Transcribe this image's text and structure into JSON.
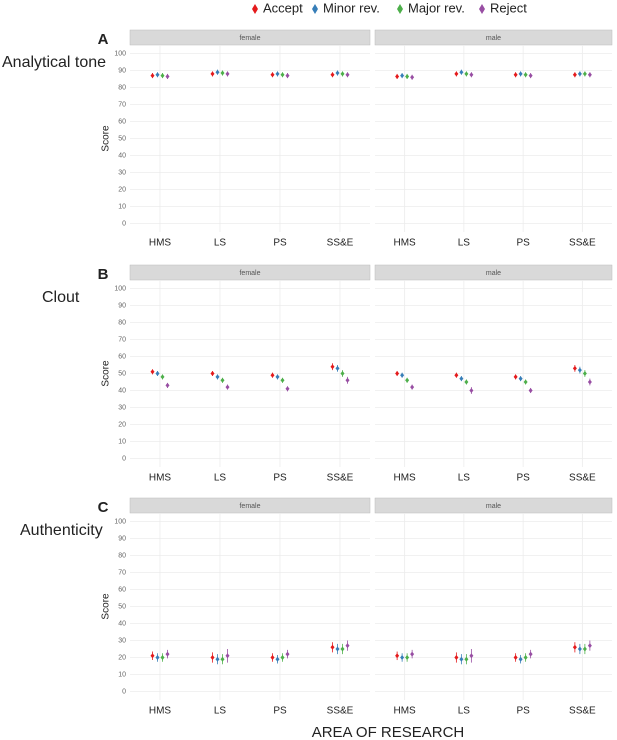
{
  "chart_data": [
    {
      "type": "dodged-point-errorbar",
      "letter": "A",
      "title": "Analytical tone",
      "ylabel": "Score",
      "ylim": [
        -5,
        105
      ],
      "yticks": [
        0,
        10,
        20,
        30,
        40,
        50,
        60,
        70,
        80,
        90,
        100
      ],
      "grid": true,
      "categories": [
        "HMS",
        "LS",
        "PS",
        "SS&E"
      ],
      "facets": [
        {
          "label": "female",
          "series": [
            {
              "name": "Accept",
              "color": "#e41a1c",
              "values": [
                87,
                88,
                87.5,
                87.5
              ],
              "errors": [
                1.5,
                1.5,
                1.5,
                1.5
              ]
            },
            {
              "name": "Minor rev.",
              "color": "#377eb8",
              "values": [
                87.5,
                89,
                88,
                88.5
              ],
              "errors": [
                1.5,
                1.5,
                1.5,
                1.5
              ]
            },
            {
              "name": "Major rev.",
              "color": "#4daf4a",
              "values": [
                87,
                88.5,
                87.5,
                88
              ],
              "errors": [
                1.5,
                1.5,
                1.5,
                1.5
              ]
            },
            {
              "name": "Reject",
              "color": "#984ea3",
              "values": [
                86.5,
                88,
                87,
                87.5
              ],
              "errors": [
                1.5,
                1.5,
                1.5,
                1.5
              ]
            }
          ]
        },
        {
          "label": "male",
          "series": [
            {
              "name": "Accept",
              "color": "#e41a1c",
              "values": [
                86.5,
                88,
                87.5,
                87.5
              ],
              "errors": [
                1.5,
                1.5,
                1.5,
                1.5
              ]
            },
            {
              "name": "Minor rev.",
              "color": "#377eb8",
              "values": [
                87,
                89,
                88,
                88
              ],
              "errors": [
                1.5,
                1.5,
                1.5,
                1.5
              ]
            },
            {
              "name": "Major rev.",
              "color": "#4daf4a",
              "values": [
                86.5,
                88,
                87.5,
                88
              ],
              "errors": [
                1.5,
                1.5,
                1.5,
                1.5
              ]
            },
            {
              "name": "Reject",
              "color": "#984ea3",
              "values": [
                86,
                87.5,
                87,
                87.5
              ],
              "errors": [
                1.5,
                1.5,
                1.5,
                1.5
              ]
            }
          ]
        }
      ]
    },
    {
      "type": "dodged-point-errorbar",
      "letter": "B",
      "title": "Clout",
      "ylabel": "Score",
      "ylim": [
        -5,
        105
      ],
      "yticks": [
        0,
        10,
        20,
        30,
        40,
        50,
        60,
        70,
        80,
        90,
        100
      ],
      "grid": true,
      "categories": [
        "HMS",
        "LS",
        "PS",
        "SS&E"
      ],
      "facets": [
        {
          "label": "female",
          "series": [
            {
              "name": "Accept",
              "color": "#e41a1c",
              "values": [
                51,
                50,
                49,
                54
              ],
              "errors": [
                1.5,
                1.5,
                1.5,
                2
              ]
            },
            {
              "name": "Minor rev.",
              "color": "#377eb8",
              "values": [
                50,
                48,
                48,
                53
              ],
              "errors": [
                1.5,
                1.5,
                1.5,
                2
              ]
            },
            {
              "name": "Major rev.",
              "color": "#4daf4a",
              "values": [
                48,
                46,
                46,
                50
              ],
              "errors": [
                1.5,
                1.5,
                1.5,
                2
              ]
            },
            {
              "name": "Reject",
              "color": "#984ea3",
              "values": [
                43,
                42,
                41,
                46
              ],
              "errors": [
                1.5,
                1.5,
                1.5,
                2
              ]
            }
          ]
        },
        {
          "label": "male",
          "series": [
            {
              "name": "Accept",
              "color": "#e41a1c",
              "values": [
                50,
                49,
                48,
                53
              ],
              "errors": [
                1.5,
                1.5,
                1.5,
                2
              ]
            },
            {
              "name": "Minor rev.",
              "color": "#377eb8",
              "values": [
                49,
                47,
                47,
                52
              ],
              "errors": [
                1.5,
                1.5,
                1.5,
                2
              ]
            },
            {
              "name": "Major rev.",
              "color": "#4daf4a",
              "values": [
                46,
                45,
                45,
                50
              ],
              "errors": [
                1.5,
                1.5,
                1.5,
                2
              ]
            },
            {
              "name": "Reject",
              "color": "#984ea3",
              "values": [
                42,
                40,
                40,
                45
              ],
              "errors": [
                1.5,
                2,
                1.5,
                2
              ]
            }
          ]
        }
      ]
    },
    {
      "type": "dodged-point-errorbar",
      "letter": "C",
      "title": "Authenticity",
      "ylabel": "Score",
      "xlabel": "AREA OF RESEARCH",
      "ylim": [
        -5,
        105
      ],
      "yticks": [
        0,
        10,
        20,
        30,
        40,
        50,
        60,
        70,
        80,
        90,
        100
      ],
      "grid": true,
      "categories": [
        "HMS",
        "LS",
        "PS",
        "SS&E"
      ],
      "facets": [
        {
          "label": "female",
          "series": [
            {
              "name": "Accept",
              "color": "#e41a1c",
              "values": [
                21,
                20,
                20,
                26
              ],
              "errors": [
                2.5,
                3,
                2.5,
                3
              ]
            },
            {
              "name": "Minor rev.",
              "color": "#377eb8",
              "values": [
                20,
                19,
                19,
                25
              ],
              "errors": [
                2.5,
                3,
                2.5,
                3
              ]
            },
            {
              "name": "Major rev.",
              "color": "#4daf4a",
              "values": [
                20,
                19,
                20,
                25
              ],
              "errors": [
                2.5,
                3,
                2.5,
                3
              ]
            },
            {
              "name": "Reject",
              "color": "#984ea3",
              "values": [
                22,
                21,
                22,
                27
              ],
              "errors": [
                2.5,
                4,
                2.5,
                3
              ]
            }
          ]
        },
        {
          "label": "male",
          "series": [
            {
              "name": "Accept",
              "color": "#e41a1c",
              "values": [
                21,
                20,
                20,
                26
              ],
              "errors": [
                2.5,
                3,
                2.5,
                3
              ]
            },
            {
              "name": "Minor rev.",
              "color": "#377eb8",
              "values": [
                20,
                19,
                19,
                25
              ],
              "errors": [
                2.5,
                3,
                2.5,
                3
              ]
            },
            {
              "name": "Major rev.",
              "color": "#4daf4a",
              "values": [
                20,
                19,
                20,
                25
              ],
              "errors": [
                2.5,
                3,
                2.5,
                3
              ]
            },
            {
              "name": "Reject",
              "color": "#984ea3",
              "values": [
                22,
                21,
                22,
                27
              ],
              "errors": [
                2.5,
                4,
                2.5,
                3
              ]
            }
          ]
        }
      ]
    }
  ]
}
